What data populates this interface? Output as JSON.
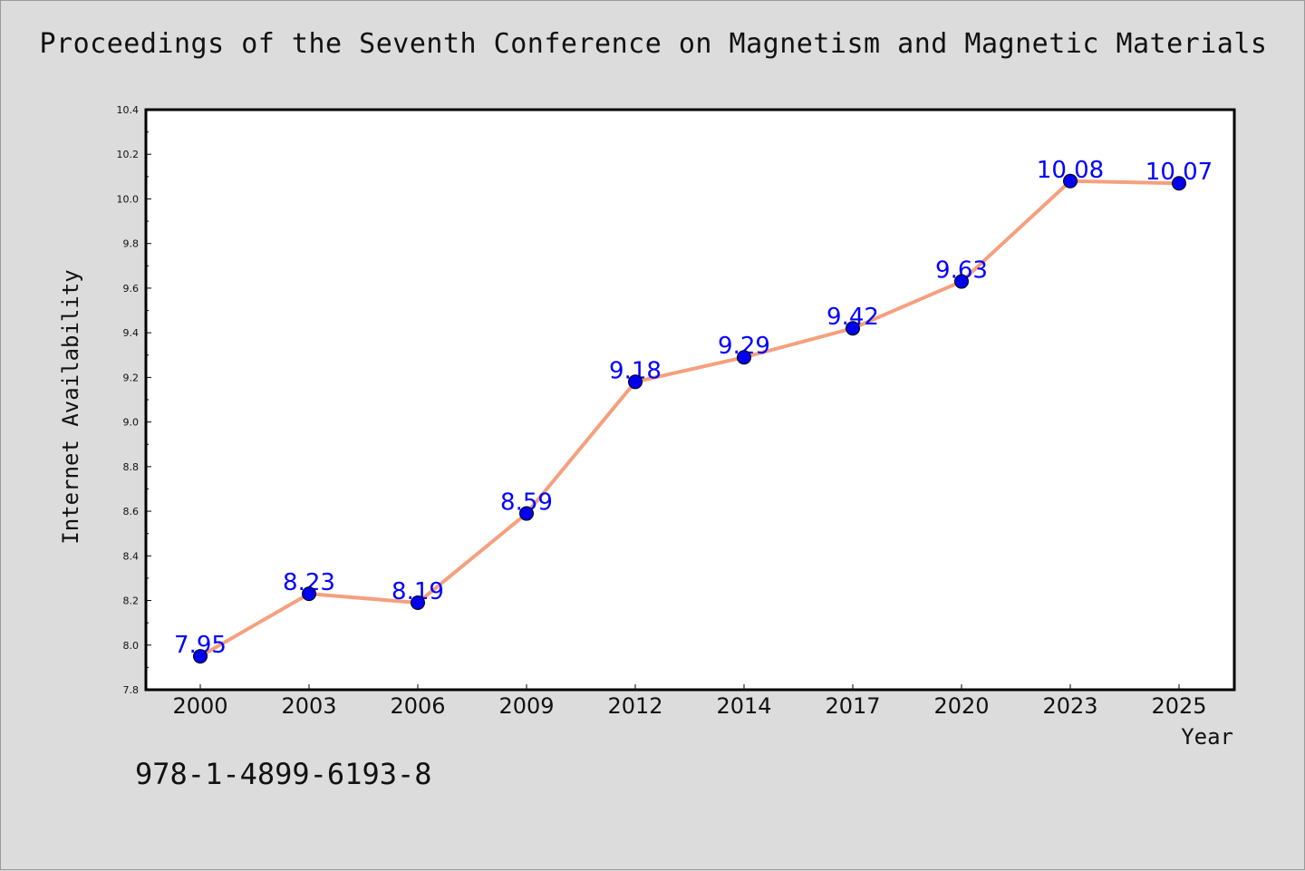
{
  "chart_data": {
    "type": "line",
    "title": "Proceedings of the Seventh Conference on Magnetism and Magnetic Materials",
    "xlabel": "Year",
    "ylabel": "Internet Availability",
    "categories": [
      "2000",
      "2003",
      "2006",
      "2009",
      "2012",
      "2014",
      "2017",
      "2020",
      "2023",
      "2025"
    ],
    "values": [
      7.95,
      8.23,
      8.19,
      8.59,
      9.18,
      9.29,
      9.42,
      9.63,
      10.08,
      10.07
    ],
    "data_labels": [
      "7.95",
      "8.23",
      "8.19",
      "8.59",
      "9.18",
      "9.29",
      "9.42",
      "9.63",
      "10.08",
      "10.07"
    ],
    "ylim": [
      7.8,
      10.4
    ],
    "yticks": [
      "7.8",
      "8.0",
      "8.2",
      "8.4",
      "8.6",
      "8.8",
      "9.0",
      "9.2",
      "9.4",
      "9.6",
      "9.8",
      "10.0",
      "10.2",
      "10.4"
    ],
    "grid": false,
    "line_color": "#f4a07e",
    "marker_color": "#0000ee",
    "label_color": "#0000ff",
    "background_color": "#dcdcdc"
  },
  "footer": {
    "isbn": "978-1-4899-6193-8"
  }
}
